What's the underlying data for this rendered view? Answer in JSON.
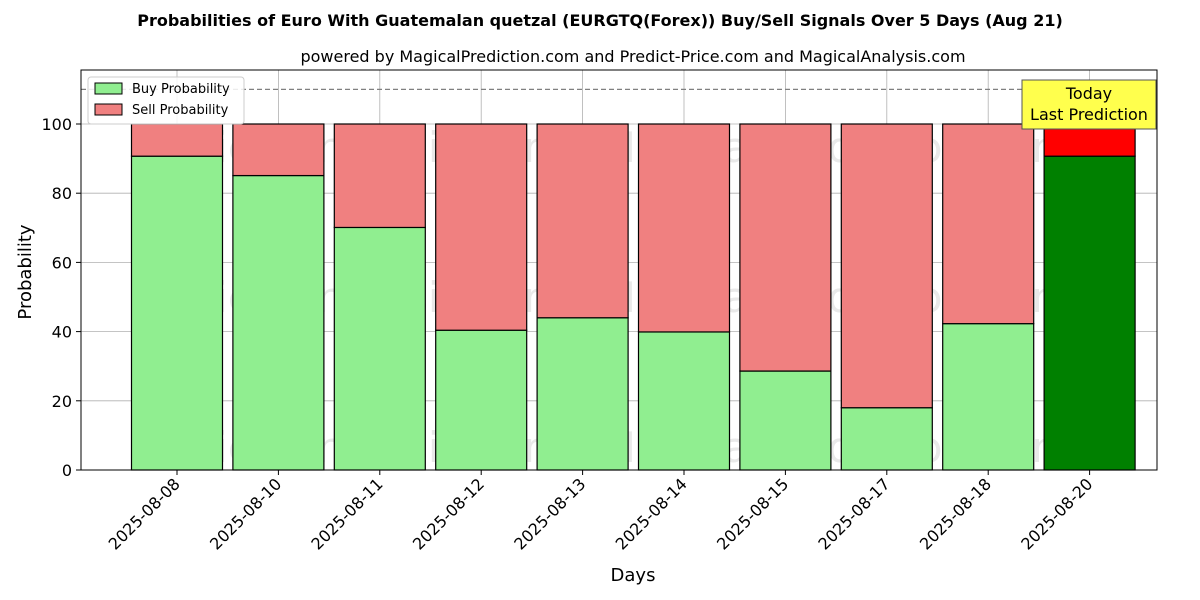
{
  "chart_data": {
    "type": "bar",
    "stacked": true,
    "title": "Probabilities of Euro With Guatemalan quetzal (EURGTQ(Forex)) Buy/Sell Signals Over 5 Days (Aug 21)",
    "subtitle": "powered by MagicalPrediction.com and Predict-Price.com and MagicalAnalysis.com",
    "xlabel": "Days",
    "ylabel": "Probability",
    "ylim": [
      0,
      115
    ],
    "yticks": [
      0,
      20,
      40,
      60,
      80,
      100
    ],
    "threshold_line": 110,
    "grid": true,
    "legend_position": "top-left",
    "categories": [
      "2025-08-08",
      "2025-08-10",
      "2025-08-11",
      "2025-08-12",
      "2025-08-13",
      "2025-08-14",
      "2025-08-15",
      "2025-08-17",
      "2025-08-18",
      "2025-08-20"
    ],
    "series": [
      {
        "name": "Buy Probability",
        "color": "#90ee90",
        "highlight_color": "#008000",
        "values": [
          90.7,
          85.1,
          70.1,
          40.4,
          44.0,
          39.9,
          28.6,
          18.0,
          42.3,
          90.7
        ]
      },
      {
        "name": "Sell Probability",
        "color": "#f08080",
        "highlight_color": "#ff0000",
        "values": [
          9.3,
          14.9,
          29.9,
          59.6,
          56.0,
          60.1,
          71.4,
          82.0,
          57.7,
          9.3
        ]
      }
    ],
    "highlight_index": 9,
    "annotation": {
      "line1": "Today",
      "line2": "Last Prediction",
      "color": "#ffff4d"
    },
    "watermarks": [
      "MagicalAnalysis.com",
      "MagicalPrediction.com"
    ]
  }
}
